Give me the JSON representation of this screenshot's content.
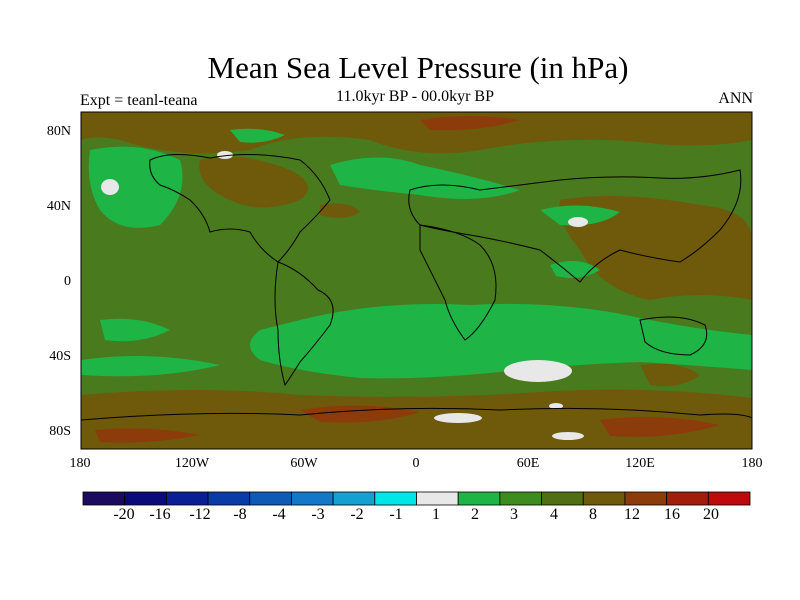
{
  "title": "Mean Sea Level Pressure (in hPa)",
  "subtitle": "11.0kyr BP - 00.0kyr BP",
  "experiment_label": "Expt = teanl-teana",
  "season_label": "ANN",
  "lat_labels": [
    "80N",
    "40N",
    "0",
    "40S",
    "80S"
  ],
  "lon_labels": [
    "180",
    "120W",
    "60W",
    "0",
    "60E",
    "120E",
    "180"
  ],
  "colorbar": {
    "labels": [
      "-20",
      "-16",
      "-12",
      "-8",
      "-4",
      "-3",
      "-2",
      "-1",
      "1",
      "2",
      "3",
      "4",
      "8",
      "12",
      "16",
      "20"
    ],
    "colors": [
      "#1c0a5e",
      "#0a0a7a",
      "#0a1e96",
      "#0a3ca8",
      "#0f5ab4",
      "#1478c8",
      "#14a0d2",
      "#00e6e6",
      "#e8e8e8",
      "#1eb446",
      "#3c8c1e",
      "#506e14",
      "#6e5a0a",
      "#8c3c0a",
      "#a01e0a",
      "#be0a0a"
    ]
  },
  "map_colors": {
    "ocean_base": "#4a7a1e",
    "band_4_8": "#6e5a0a",
    "band_8_12": "#8c3c0a",
    "band_2_3": "#1eb446",
    "band_1_2": "#e8e8e8",
    "coast": "#000000"
  }
}
